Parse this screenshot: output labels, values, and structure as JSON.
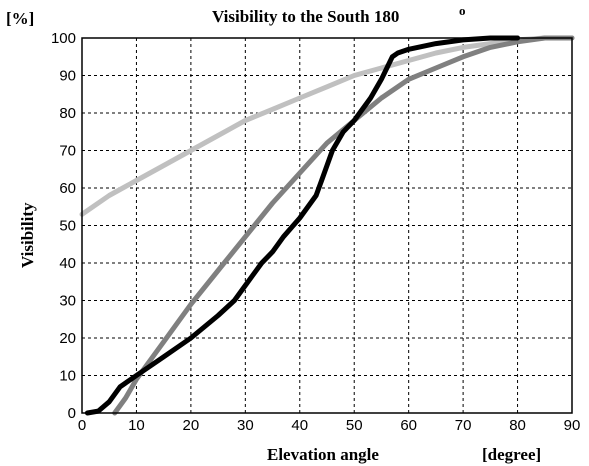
{
  "chart_data": {
    "type": "line",
    "title": "Visibility to the South 180",
    "title_superscript": "o",
    "xlabel": "Elevation angle",
    "xunit": "[degree]",
    "ylabel": "Visibility",
    "yunit": "[%]",
    "xlim": [
      0,
      90
    ],
    "ylim": [
      0,
      100
    ],
    "xticks": [
      "0",
      "10",
      "20",
      "30",
      "40",
      "50",
      "60",
      "70",
      "80",
      "90"
    ],
    "yticks": [
      "0",
      "10",
      "20",
      "30",
      "40",
      "50",
      "60",
      "70",
      "80",
      "90",
      "100"
    ],
    "grid": true,
    "series": [
      {
        "color": "#c0c0c0",
        "x": [
          0,
          5,
          10,
          15,
          20,
          25,
          30,
          35,
          40,
          45,
          50,
          55,
          60,
          65,
          70,
          75,
          80,
          85,
          90
        ],
        "y": [
          53,
          58,
          62,
          66,
          70,
          74,
          78,
          81,
          84,
          87,
          90,
          92,
          94,
          96,
          97.5,
          98.5,
          99.5,
          100,
          100
        ]
      },
      {
        "color": "#808080",
        "x": [
          6,
          8,
          10,
          12,
          15,
          20,
          25,
          30,
          35,
          40,
          45,
          50,
          55,
          60,
          65,
          70,
          75,
          80,
          85,
          90
        ],
        "y": [
          0,
          4,
          9,
          13,
          19,
          29,
          38,
          47,
          56,
          64,
          72,
          78,
          84,
          89,
          92,
          95,
          97.5,
          99,
          100,
          100
        ]
      },
      {
        "color": "#000000",
        "x": [
          1,
          3,
          5,
          7,
          10,
          15,
          20,
          25,
          28,
          30,
          33,
          35,
          37,
          40,
          43,
          44,
          46,
          48,
          50,
          53,
          55,
          57,
          58,
          60,
          65,
          70,
          75,
          80
        ],
        "y": [
          0,
          0.5,
          3,
          7,
          10,
          15,
          20,
          26,
          30,
          34,
          40,
          43,
          47,
          52,
          58,
          62,
          70,
          75,
          78,
          84,
          89,
          95,
          96,
          97,
          98.5,
          99.5,
          100,
          100
        ]
      }
    ]
  }
}
